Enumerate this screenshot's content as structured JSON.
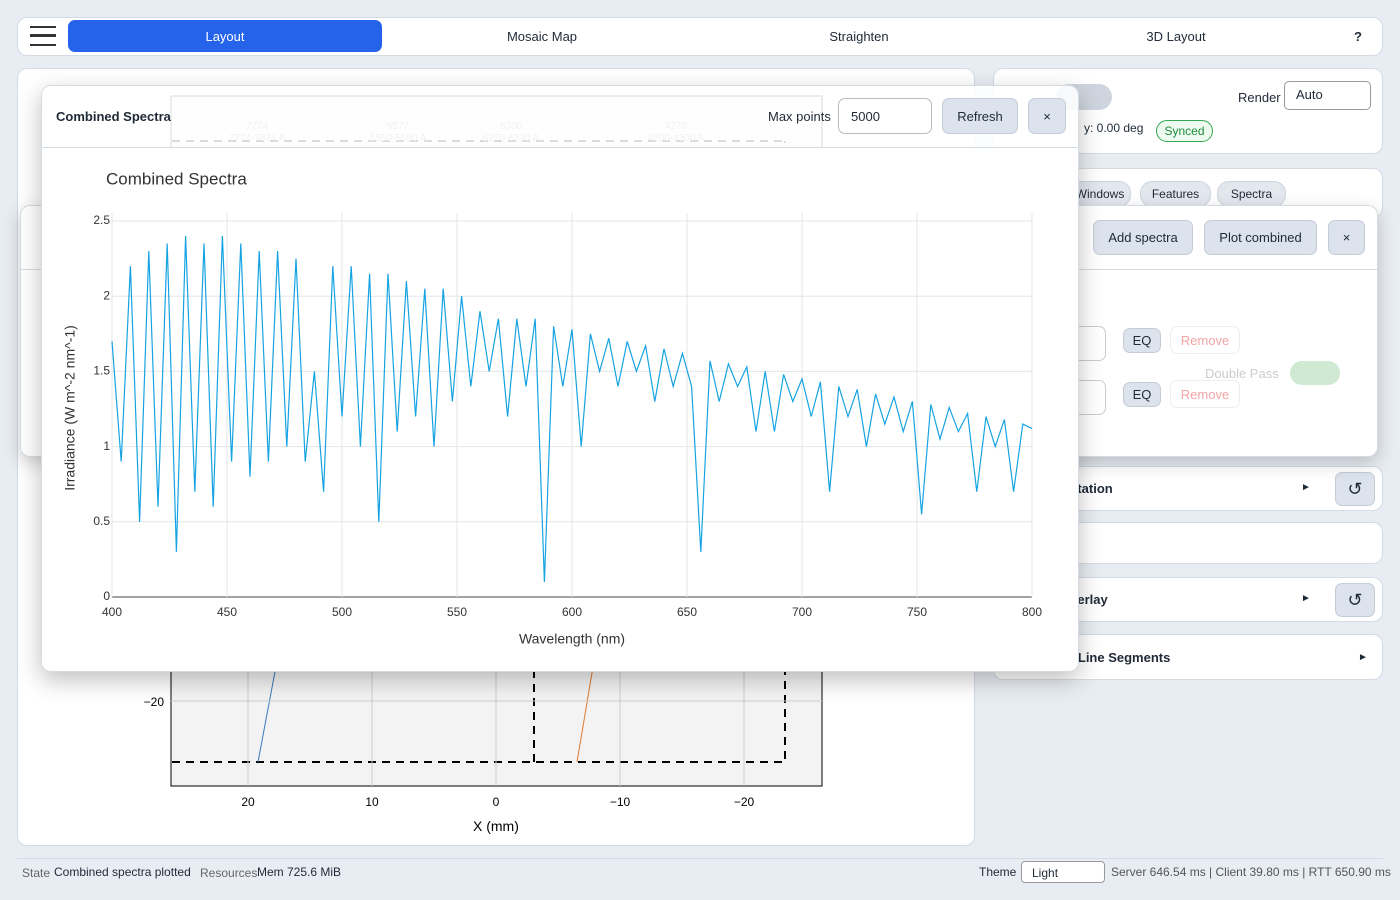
{
  "nav": {
    "tabs": [
      "Layout",
      "Mosaic Map",
      "Straighten",
      "3D Layout"
    ],
    "help": "?"
  },
  "background_chart": {
    "xlabel": "X (mm)",
    "xticks": [
      {
        "value": 20,
        "label": "20"
      },
      {
        "value": 10,
        "label": "10"
      },
      {
        "value": 0,
        "label": "0"
      },
      {
        "value": -10,
        "label": "−10"
      },
      {
        "value": -20,
        "label": "−20"
      }
    ],
    "ytick": {
      "value": -20,
      "label": "−20"
    },
    "lines": [
      {
        "label": "7774",
        "range": "7774-7874 A"
      },
      {
        "label": "5577",
        "range": "5550-5650 A"
      },
      {
        "label": "6300",
        "range": "6270-6330 A"
      },
      {
        "label": "4278",
        "range": "4200-4300 A"
      }
    ]
  },
  "right_panel": {
    "render_label": "Render",
    "render_value": "Auto",
    "rotation_text": "y: 0.00 deg",
    "synced": "Synced",
    "tabs": [
      "Windows",
      "Features",
      "Spectra"
    ],
    "cards": [
      "Rotation",
      "Overlay",
      "Computed Line Segments"
    ],
    "expand": "►"
  },
  "spectra_dialog": {
    "buttons": [
      "Add spectra",
      "Plot combined"
    ],
    "close": "×",
    "rows": [
      {
        "eq": "EQ",
        "remove": "Remove"
      },
      {
        "eq": "EQ",
        "remove": "Remove"
      }
    ],
    "double_pass": "Double Pass"
  },
  "modal": {
    "title": "Combined Spectra",
    "max_points_label": "Max points",
    "max_points": "5000",
    "refresh": "Refresh",
    "close": "×"
  },
  "chart_data": {
    "type": "line",
    "title": "Combined Spectra",
    "xlabel": "Wavelength (nm)",
    "ylabel": "Irradiance (W m^-2 nm^-1)",
    "xlim": [
      400,
      800
    ],
    "xticks": [
      400,
      450,
      500,
      550,
      600,
      650,
      700,
      750,
      800
    ],
    "ylim": [
      0,
      2.5
    ],
    "yticks": [
      0,
      0.5,
      1,
      1.5,
      2,
      2.5
    ],
    "grid": true,
    "x": [
      400,
      404,
      408,
      412,
      416,
      420,
      424,
      428,
      432,
      436,
      440,
      444,
      448,
      452,
      456,
      460,
      464,
      468,
      472,
      476,
      480,
      484,
      488,
      492,
      496,
      500,
      504,
      508,
      512,
      516,
      520,
      524,
      528,
      532,
      536,
      540,
      544,
      548,
      552,
      556,
      560,
      564,
      568,
      572,
      576,
      580,
      584,
      588,
      592,
      596,
      600,
      604,
      608,
      612,
      616,
      620,
      624,
      628,
      632,
      636,
      640,
      644,
      648,
      652,
      656,
      660,
      664,
      668,
      672,
      676,
      680,
      684,
      688,
      692,
      696,
      700,
      704,
      708,
      712,
      716,
      720,
      724,
      728,
      732,
      736,
      740,
      744,
      748,
      752,
      756,
      760,
      764,
      768,
      772,
      776,
      780,
      784,
      788,
      792,
      796,
      800
    ],
    "series": [
      {
        "name": "Combined Spectra",
        "color": "#16a3e3",
        "values": [
          1.7,
          0.9,
          2.2,
          0.5,
          2.3,
          0.6,
          2.35,
          0.3,
          2.4,
          0.7,
          2.35,
          0.6,
          2.4,
          0.9,
          2.35,
          0.8,
          2.3,
          0.9,
          2.3,
          1.0,
          2.25,
          0.9,
          1.5,
          0.7,
          2.2,
          1.2,
          2.2,
          1.0,
          2.15,
          0.5,
          2.15,
          1.1,
          2.1,
          1.2,
          2.05,
          1.0,
          2.05,
          1.3,
          2.0,
          1.4,
          1.9,
          1.5,
          1.85,
          1.2,
          1.85,
          1.4,
          1.85,
          0.1,
          1.8,
          1.4,
          1.78,
          1.0,
          1.75,
          1.5,
          1.72,
          1.4,
          1.7,
          1.5,
          1.67,
          1.3,
          1.65,
          1.4,
          1.62,
          1.4,
          0.3,
          1.57,
          1.3,
          1.55,
          1.4,
          1.53,
          1.1,
          1.5,
          1.1,
          1.48,
          1.3,
          1.45,
          1.2,
          1.43,
          0.7,
          1.4,
          1.2,
          1.38,
          1.0,
          1.35,
          1.15,
          1.33,
          1.1,
          1.3,
          0.55,
          1.28,
          1.05,
          1.26,
          1.1,
          1.22,
          0.7,
          1.2,
          1.0,
          1.18,
          0.7,
          1.15,
          1.12
        ]
      }
    ]
  },
  "status": {
    "state_label": "State",
    "state": "Combined spectra plotted",
    "resources_label": "Resources",
    "mem": "Mem 725.6 MiB",
    "theme_label": "Theme",
    "theme": "Light",
    "timing": "Server 646.54 ms | Client 39.80 ms | RTT 650.90 ms"
  }
}
